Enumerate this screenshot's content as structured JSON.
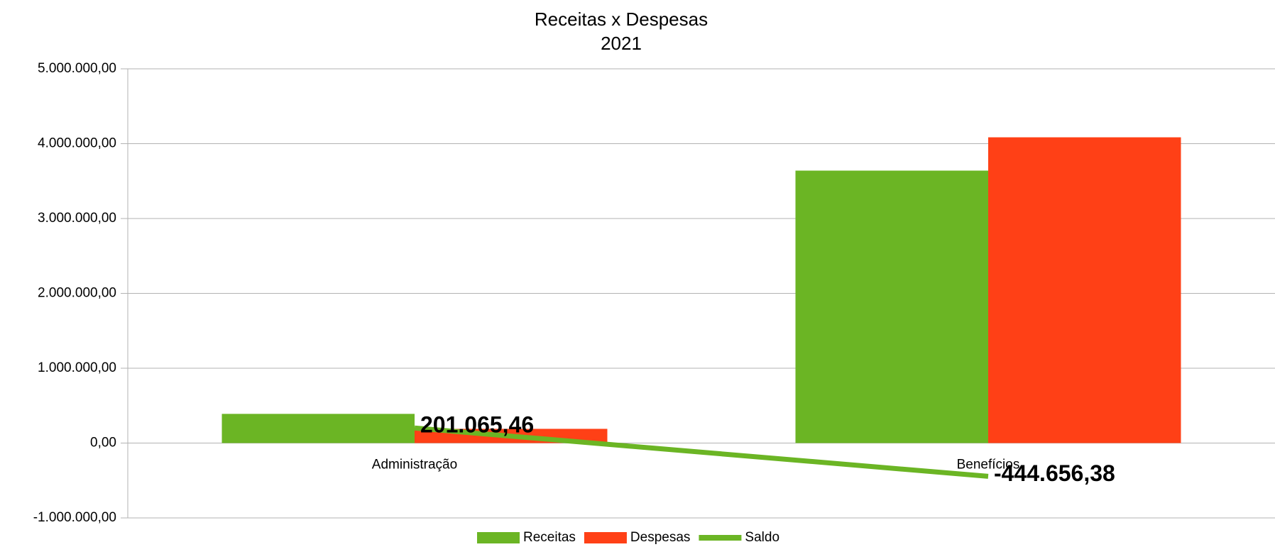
{
  "chart_data": {
    "type": "bar",
    "title": "Receitas x Despesas",
    "subtitle": "2021",
    "categories": [
      "Administração",
      "Benefícios"
    ],
    "series": [
      {
        "name": "Receitas",
        "color": "#6bb524",
        "values": [
          390000,
          3640000
        ]
      },
      {
        "name": "Despesas",
        "color": "#ff4016",
        "values": [
          190000,
          4085000
        ]
      },
      {
        "name": "Saldo",
        "type": "line",
        "color": "#6bb524",
        "values": [
          201065.46,
          -444656.38
        ],
        "value_labels": [
          "201.065,46",
          "-444.656,38"
        ]
      }
    ],
    "ylim": [
      -1000000,
      5000000
    ],
    "yticks": [
      {
        "value": -1000000,
        "label": "-1.000.000,00"
      },
      {
        "value": 0,
        "label": "0,00"
      },
      {
        "value": 1000000,
        "label": "1.000.000,00"
      },
      {
        "value": 2000000,
        "label": "2.000.000,00"
      },
      {
        "value": 3000000,
        "label": "3.000.000,00"
      },
      {
        "value": 4000000,
        "label": "4.000.000,00"
      },
      {
        "value": 5000000,
        "label": "5.000.000,00"
      }
    ],
    "grid": true,
    "legend": "bottom"
  }
}
